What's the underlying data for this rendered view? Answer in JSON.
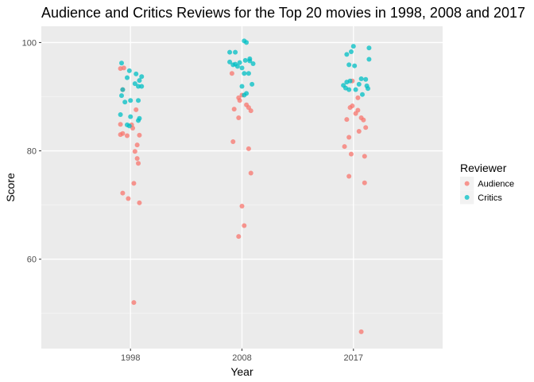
{
  "chart_data": {
    "type": "scatter",
    "title": "Audience and Critics Reviews for the Top 20 movies in 1998, 2008 and 2017",
    "xlabel": "Year",
    "ylabel": "Score",
    "categories": [
      "1998",
      "2008",
      "2017"
    ],
    "yticks": [
      60,
      80,
      100
    ],
    "ylim": [
      43.5,
      103
    ],
    "grid": true,
    "legend": {
      "title": "Reviewer",
      "position": "right"
    },
    "series": [
      {
        "name": "Audience",
        "color": "#F8766D",
        "points": [
          {
            "x": "1998",
            "jitter": -0.09,
            "y": 95.2
          },
          {
            "x": "1998",
            "jitter": -0.06,
            "y": 95.3
          },
          {
            "x": "1998",
            "jitter": -0.07,
            "y": 91.3
          },
          {
            "x": "1998",
            "jitter": 0.05,
            "y": 87.6
          },
          {
            "x": "1998",
            "jitter": -0.09,
            "y": 84.9
          },
          {
            "x": "1998",
            "jitter": 0.01,
            "y": 84.8
          },
          {
            "x": "1998",
            "jitter": 0.02,
            "y": 84.2
          },
          {
            "x": "1998",
            "jitter": -0.09,
            "y": 83.0
          },
          {
            "x": "1998",
            "jitter": -0.07,
            "y": 83.2
          },
          {
            "x": "1998",
            "jitter": -0.03,
            "y": 82.8
          },
          {
            "x": "1998",
            "jitter": 0.08,
            "y": 82.9
          },
          {
            "x": "1998",
            "jitter": 0.06,
            "y": 81.1
          },
          {
            "x": "1998",
            "jitter": 0.04,
            "y": 79.9
          },
          {
            "x": "1998",
            "jitter": 0.06,
            "y": 78.6
          },
          {
            "x": "1998",
            "jitter": 0.07,
            "y": 77.7
          },
          {
            "x": "1998",
            "jitter": 0.03,
            "y": 74.0
          },
          {
            "x": "1998",
            "jitter": -0.07,
            "y": 72.2
          },
          {
            "x": "1998",
            "jitter": -0.02,
            "y": 71.2
          },
          {
            "x": "1998",
            "jitter": 0.08,
            "y": 70.4
          },
          {
            "x": "1998",
            "jitter": 0.03,
            "y": 52.0
          },
          {
            "x": "2008",
            "jitter": -0.09,
            "y": 94.3
          },
          {
            "x": "2008",
            "jitter": 0.0,
            "y": 90.3
          },
          {
            "x": "2008",
            "jitter": -0.03,
            "y": 89.8
          },
          {
            "x": "2008",
            "jitter": -0.02,
            "y": 89.3
          },
          {
            "x": "2008",
            "jitter": 0.04,
            "y": 88.5
          },
          {
            "x": "2008",
            "jitter": 0.06,
            "y": 88.0
          },
          {
            "x": "2008",
            "jitter": 0.08,
            "y": 87.4
          },
          {
            "x": "2008",
            "jitter": -0.07,
            "y": 87.7
          },
          {
            "x": "2008",
            "jitter": -0.03,
            "y": 86.1
          },
          {
            "x": "2008",
            "jitter": -0.08,
            "y": 81.7
          },
          {
            "x": "2008",
            "jitter": 0.06,
            "y": 80.4
          },
          {
            "x": "2008",
            "jitter": 0.08,
            "y": 75.9
          },
          {
            "x": "2008",
            "jitter": 0.0,
            "y": 69.8
          },
          {
            "x": "2008",
            "jitter": 0.02,
            "y": 66.2
          },
          {
            "x": "2008",
            "jitter": -0.03,
            "y": 64.2
          },
          {
            "x": "2017",
            "jitter": -0.01,
            "y": 92.9
          },
          {
            "x": "2017",
            "jitter": 0.04,
            "y": 89.8
          },
          {
            "x": "2017",
            "jitter": -0.03,
            "y": 88.0
          },
          {
            "x": "2017",
            "jitter": -0.01,
            "y": 88.3
          },
          {
            "x": "2017",
            "jitter": 0.04,
            "y": 87.5
          },
          {
            "x": "2017",
            "jitter": 0.02,
            "y": 86.9
          },
          {
            "x": "2017",
            "jitter": 0.07,
            "y": 86.1
          },
          {
            "x": "2017",
            "jitter": 0.09,
            "y": 85.7
          },
          {
            "x": "2017",
            "jitter": -0.06,
            "y": 85.8
          },
          {
            "x": "2017",
            "jitter": 0.11,
            "y": 84.3
          },
          {
            "x": "2017",
            "jitter": 0.05,
            "y": 83.6
          },
          {
            "x": "2017",
            "jitter": -0.04,
            "y": 82.5
          },
          {
            "x": "2017",
            "jitter": -0.08,
            "y": 80.8
          },
          {
            "x": "2017",
            "jitter": -0.02,
            "y": 79.4
          },
          {
            "x": "2017",
            "jitter": 0.1,
            "y": 79.0
          },
          {
            "x": "2017",
            "jitter": -0.04,
            "y": 75.3
          },
          {
            "x": "2017",
            "jitter": 0.1,
            "y": 74.1
          },
          {
            "x": "2017",
            "jitter": 0.07,
            "y": 46.6
          }
        ]
      },
      {
        "name": "Critics",
        "color": "#00BFC4",
        "points": [
          {
            "x": "1998",
            "jitter": -0.08,
            "y": 96.2
          },
          {
            "x": "1998",
            "jitter": -0.01,
            "y": 94.8
          },
          {
            "x": "1998",
            "jitter": 0.05,
            "y": 94.2
          },
          {
            "x": "1998",
            "jitter": 0.1,
            "y": 93.7
          },
          {
            "x": "1998",
            "jitter": -0.03,
            "y": 93.5
          },
          {
            "x": "1998",
            "jitter": 0.08,
            "y": 93.0
          },
          {
            "x": "1998",
            "jitter": 0.04,
            "y": 92.4
          },
          {
            "x": "1998",
            "jitter": 0.07,
            "y": 91.9
          },
          {
            "x": "1998",
            "jitter": 0.1,
            "y": 91.9
          },
          {
            "x": "1998",
            "jitter": -0.07,
            "y": 91.3
          },
          {
            "x": "1998",
            "jitter": -0.08,
            "y": 90.2
          },
          {
            "x": "1998",
            "jitter": 0.0,
            "y": 89.3
          },
          {
            "x": "1998",
            "jitter": 0.07,
            "y": 89.3
          },
          {
            "x": "1998",
            "jitter": -0.05,
            "y": 89.0
          },
          {
            "x": "1998",
            "jitter": -0.09,
            "y": 86.7
          },
          {
            "x": "1998",
            "jitter": 0.0,
            "y": 86.3
          },
          {
            "x": "1998",
            "jitter": 0.08,
            "y": 86.0
          },
          {
            "x": "1998",
            "jitter": 0.07,
            "y": 85.6
          },
          {
            "x": "1998",
            "jitter": -0.03,
            "y": 84.8
          },
          {
            "x": "1998",
            "jitter": -0.01,
            "y": 84.6
          },
          {
            "x": "2008",
            "jitter": 0.02,
            "y": 100.3
          },
          {
            "x": "2008",
            "jitter": 0.04,
            "y": 100.0
          },
          {
            "x": "2008",
            "jitter": -0.11,
            "y": 98.2
          },
          {
            "x": "2008",
            "jitter": -0.06,
            "y": 98.2
          },
          {
            "x": "2008",
            "jitter": 0.07,
            "y": 97.0
          },
          {
            "x": "2008",
            "jitter": 0.03,
            "y": 96.7
          },
          {
            "x": "2008",
            "jitter": 0.07,
            "y": 96.6
          },
          {
            "x": "2008",
            "jitter": -0.11,
            "y": 96.4
          },
          {
            "x": "2008",
            "jitter": -0.02,
            "y": 96.3
          },
          {
            "x": "2008",
            "jitter": -0.06,
            "y": 96.0
          },
          {
            "x": "2008",
            "jitter": 0.1,
            "y": 96.1
          },
          {
            "x": "2008",
            "jitter": -0.08,
            "y": 95.9
          },
          {
            "x": "2008",
            "jitter": -0.04,
            "y": 95.6
          },
          {
            "x": "2008",
            "jitter": 0.0,
            "y": 95.3
          },
          {
            "x": "2008",
            "jitter": 0.02,
            "y": 94.3
          },
          {
            "x": "2008",
            "jitter": 0.06,
            "y": 94.3
          },
          {
            "x": "2008",
            "jitter": 0.09,
            "y": 92.3
          },
          {
            "x": "2008",
            "jitter": 0.0,
            "y": 91.9
          },
          {
            "x": "2008",
            "jitter": 0.04,
            "y": 90.6
          },
          {
            "x": "2008",
            "jitter": 0.02,
            "y": 90.3
          },
          {
            "x": "2017",
            "jitter": 0.0,
            "y": 99.3
          },
          {
            "x": "2017",
            "jitter": 0.14,
            "y": 99.0
          },
          {
            "x": "2017",
            "jitter": -0.02,
            "y": 98.3
          },
          {
            "x": "2017",
            "jitter": -0.06,
            "y": 97.8
          },
          {
            "x": "2017",
            "jitter": 0.14,
            "y": 96.9
          },
          {
            "x": "2017",
            "jitter": -0.04,
            "y": 95.9
          },
          {
            "x": "2017",
            "jitter": 0.01,
            "y": 95.7
          },
          {
            "x": "2017",
            "jitter": 0.11,
            "y": 93.2
          },
          {
            "x": "2017",
            "jitter": 0.07,
            "y": 93.3
          },
          {
            "x": "2017",
            "jitter": -0.03,
            "y": 92.9
          },
          {
            "x": "2017",
            "jitter": -0.06,
            "y": 92.7
          },
          {
            "x": "2017",
            "jitter": 0.05,
            "y": 92.3
          },
          {
            "x": "2017",
            "jitter": -0.09,
            "y": 92.1
          },
          {
            "x": "2017",
            "jitter": 0.12,
            "y": 92.0
          },
          {
            "x": "2017",
            "jitter": -0.07,
            "y": 91.6
          },
          {
            "x": "2017",
            "jitter": 0.13,
            "y": 91.5
          },
          {
            "x": "2017",
            "jitter": -0.04,
            "y": 91.3
          },
          {
            "x": "2017",
            "jitter": 0.02,
            "y": 91.3
          },
          {
            "x": "2017",
            "jitter": 0.08,
            "y": 90.4
          }
        ]
      }
    ]
  }
}
